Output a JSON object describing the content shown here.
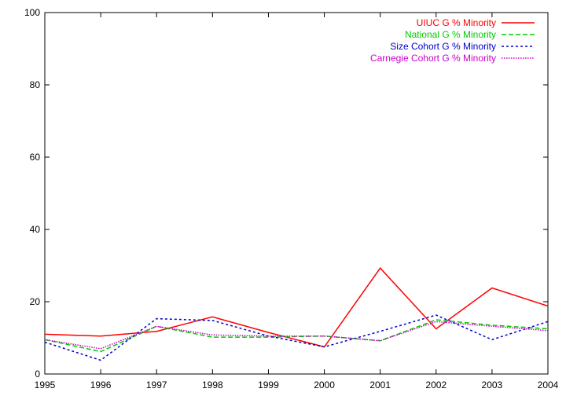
{
  "chart_data": {
    "type": "line",
    "title": "",
    "xlabel": "",
    "ylabel": "",
    "x": [
      1995,
      1996,
      1997,
      1998,
      1999,
      2000,
      2001,
      2002,
      2003,
      2004
    ],
    "xlim": [
      1995,
      2004
    ],
    "ylim": [
      0,
      100
    ],
    "x_ticks": [
      "1995",
      "1996",
      "1997",
      "1998",
      "1999",
      "2000",
      "2001",
      "2002",
      "2003",
      "2004"
    ],
    "y_ticks": [
      "0",
      "20",
      "40",
      "60",
      "80",
      "100"
    ],
    "grid": false,
    "legend_position": "top-right",
    "series": [
      {
        "name": "UIUC G % Minority",
        "color": "#ff0000",
        "dash": "solid",
        "values": [
          11.0,
          10.5,
          11.8,
          15.8,
          11.5,
          7.5,
          29.3,
          12.5,
          23.8,
          18.8
        ]
      },
      {
        "name": "National G % Minority",
        "color": "#00cc00",
        "dash": "dashed",
        "values": [
          9.5,
          6.2,
          13.2,
          10.2,
          10.2,
          10.5,
          9.2,
          15.0,
          13.5,
          12.5
        ]
      },
      {
        "name": "Size Cohort G % Minority",
        "color": "#0000cc",
        "dash": "dotted",
        "values": [
          8.8,
          3.8,
          15.3,
          14.8,
          10.5,
          7.5,
          11.8,
          16.3,
          9.5,
          14.5
        ]
      },
      {
        "name": "Carnegie Cohort G % Minority",
        "color": "#cc00cc",
        "dash": "fine-dotted",
        "values": [
          9.5,
          7.0,
          13.2,
          10.8,
          10.5,
          10.5,
          9.2,
          14.5,
          13.2,
          12.0
        ]
      }
    ]
  }
}
